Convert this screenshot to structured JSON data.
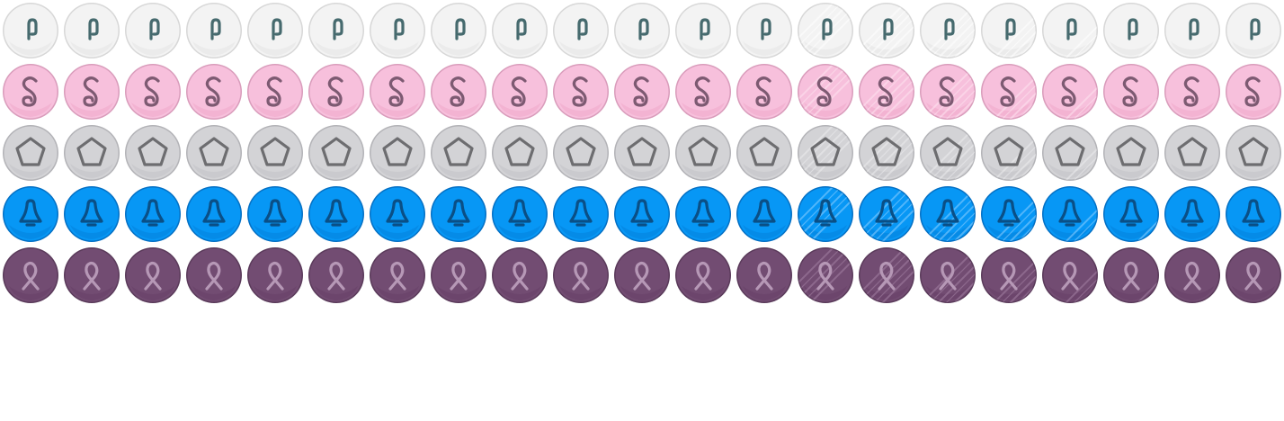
{
  "sprite_sheet": {
    "columns": 21,
    "rows": [
      {
        "name": "white",
        "icon": "paperclip-icon",
        "colors": {
          "fill": "#f3f3f3",
          "rim": "#d7d7d7",
          "shade": "#e8e8e8",
          "glyph": "#466a6e",
          "shine": "#ffffff"
        }
      },
      {
        "name": "pink",
        "icon": "swirl-icon",
        "colors": {
          "fill": "#f7c0dc",
          "rim": "#d99cbb",
          "shade": "#f1afd0",
          "glyph": "#7d5a72",
          "shine": "#fde3f0"
        }
      },
      {
        "name": "grey",
        "icon": "pentagon-icon",
        "colors": {
          "fill": "#d3d3d6",
          "rim": "#b3b3b7",
          "shade": "#c8c8cc",
          "glyph": "#6d6d70",
          "shine": "#ececef"
        }
      },
      {
        "name": "blue",
        "icon": "bell-icon",
        "colors": {
          "fill": "#0797f5",
          "rim": "#0470c4",
          "shade": "#0588e4",
          "glyph": "#0a4f86",
          "shine": "#8fd0ff"
        }
      },
      {
        "name": "purple",
        "icon": "ribbon-icon",
        "colors": {
          "fill": "#724c72",
          "rim": "#5a3a5a",
          "shade": "#6a446a",
          "glyph": "#b698b6",
          "shine": "#a482a4"
        }
      }
    ],
    "shine_frames": [
      0,
      0,
      0,
      0,
      0,
      0,
      0,
      0,
      0,
      0,
      0,
      0,
      0,
      1,
      2,
      3,
      4,
      5,
      6,
      0,
      0
    ]
  }
}
